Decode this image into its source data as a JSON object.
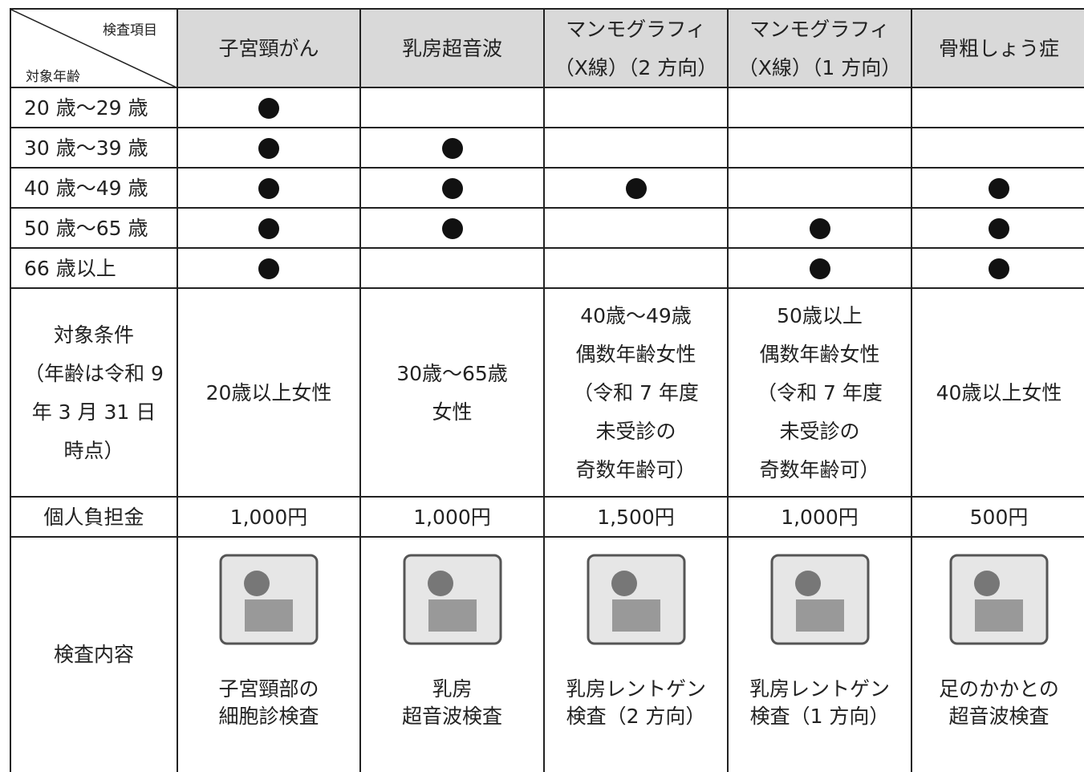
{
  "header": {
    "corner_top": "検査項目",
    "corner_bottom": "対象年齢",
    "columns": [
      [
        "子宮頸がん"
      ],
      [
        "乳房超音波"
      ],
      [
        "マンモグラフィ",
        "（X線）（2 方向）"
      ],
      [
        "マンモグラフィ",
        "（X線）（1 方向）"
      ],
      [
        "骨粗しょう症"
      ]
    ]
  },
  "age_rows": [
    {
      "label": "20 歳～29 歳",
      "eligible": [
        true,
        false,
        false,
        false,
        false
      ]
    },
    {
      "label": "30 歳～39 歳",
      "eligible": [
        true,
        true,
        false,
        false,
        false
      ]
    },
    {
      "label": "40 歳～49 歳",
      "eligible": [
        true,
        true,
        true,
        false,
        true
      ]
    },
    {
      "label": "50 歳～65 歳",
      "eligible": [
        true,
        true,
        false,
        true,
        true
      ]
    },
    {
      "label": "66 歳以上",
      "eligible": [
        true,
        false,
        false,
        true,
        true
      ]
    }
  ],
  "conditions": {
    "label": [
      "対象条件",
      "（年齢は令和 9",
      "年 3 月 31 日",
      "時点）"
    ],
    "cells": [
      [
        "20歳以上女性"
      ],
      [
        "30歳～65歳",
        "女性"
      ],
      [
        "40歳～49歳",
        "偶数年齢女性",
        "（令和 7 年度",
        "未受診の",
        "奇数年齢可）"
      ],
      [
        "50歳以上",
        "偶数年齢女性",
        "（令和 7 年度",
        "未受診の",
        "奇数年齢可）"
      ],
      [
        "40歳以上女性"
      ]
    ]
  },
  "fee": {
    "label": "個人負担金",
    "cells": [
      "1,000円",
      "1,000円",
      "1,500円",
      "1,000円",
      "500円"
    ]
  },
  "content": {
    "label": "検査内容",
    "cells": [
      [
        "子宮頸部の",
        "細胞診検査"
      ],
      [
        "乳房",
        "超音波検査"
      ],
      [
        "乳房レントゲン",
        "検査（2 方向）"
      ],
      [
        "乳房レントゲン",
        "検査（1 方向）"
      ],
      [
        "足のかかとの",
        "超音波検査"
      ]
    ]
  }
}
